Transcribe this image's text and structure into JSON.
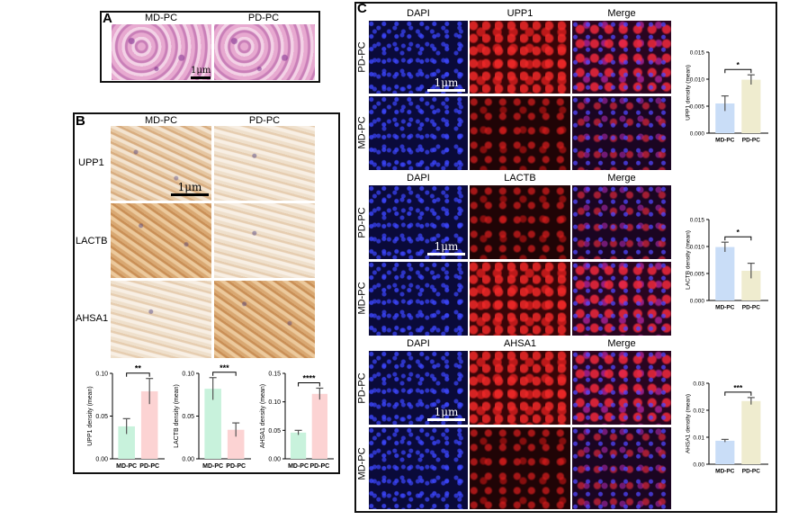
{
  "panels": {
    "A": {
      "letter": "A",
      "columns": [
        "MD-PC",
        "PD-PC"
      ],
      "scale_label": "1μm"
    },
    "B": {
      "letter": "B",
      "columns": [
        "MD-PC",
        "PD-PC"
      ],
      "rows": [
        "UPP1",
        "LACTB",
        "AHSA1"
      ],
      "scale_label": "1μm"
    },
    "C": {
      "letter": "C",
      "columns": [
        "DAPI",
        "UPP1",
        "Merge",
        "DAPI",
        "LACTB",
        "Merge",
        "DAPI",
        "AHSA1",
        "Merge"
      ],
      "row_labels": [
        "PD-PC",
        "MD-PC",
        "PD-PC",
        "MD-PC",
        "PD-PC",
        "MD-PC"
      ],
      "scale_label": "1μm"
    }
  },
  "chart_data": [
    {
      "type": "bar",
      "panel": "B",
      "categories": [
        "MD-PC",
        "PD-PC"
      ],
      "values": [
        0.038,
        0.079
      ],
      "errors": [
        0.009,
        0.015
      ],
      "ylabel": "UPP1 density (mean)",
      "ylim": [
        0,
        0.1
      ],
      "yticks": [
        "0.00",
        "0.05",
        "0.10"
      ],
      "significance": "**",
      "colors": [
        "#c8f2dc",
        "#fcd3d3"
      ]
    },
    {
      "type": "bar",
      "panel": "B",
      "categories": [
        "MD-PC",
        "PD-PC"
      ],
      "values": [
        0.082,
        0.034
      ],
      "errors": [
        0.013,
        0.008
      ],
      "ylabel": "LACTB density (mean)",
      "ylim": [
        0,
        0.1
      ],
      "yticks": [
        "0.00",
        "0.05",
        "0.10"
      ],
      "significance": "***",
      "colors": [
        "#c8f2dc",
        "#fcd3d3"
      ]
    },
    {
      "type": "bar",
      "panel": "B",
      "categories": [
        "MD-PC",
        "PD-PC"
      ],
      "values": [
        0.046,
        0.114
      ],
      "errors": [
        0.004,
        0.01
      ],
      "ylabel": "AHSA1 density (mean)",
      "ylim": [
        0,
        0.15
      ],
      "yticks": [
        "0.00",
        "0.05",
        "0.10",
        "0.15"
      ],
      "significance": "****",
      "colors": [
        "#c8f2dc",
        "#fcd3d3"
      ]
    },
    {
      "type": "bar",
      "panel": "C",
      "categories": [
        "MD-PC",
        "PD-PC"
      ],
      "values": [
        0.0055,
        0.0099
      ],
      "errors": [
        0.0014,
        0.0009
      ],
      "ylabel": "UPP1 density (mean)",
      "ylim": [
        0,
        0.015
      ],
      "yticks": [
        "0.000",
        "0.005",
        "0.010",
        "0.015"
      ],
      "significance": "*",
      "colors": [
        "#c9ddf7",
        "#efeccf"
      ]
    },
    {
      "type": "bar",
      "panel": "C",
      "categories": [
        "MD-PC",
        "PD-PC"
      ],
      "values": [
        0.0099,
        0.0055
      ],
      "errors": [
        0.0009,
        0.0014
      ],
      "ylabel": "LACTB density (mean)",
      "ylim": [
        0,
        0.015
      ],
      "yticks": [
        "0.000",
        "0.005",
        "0.010",
        "0.015"
      ],
      "significance": "*",
      "colors": [
        "#c9ddf7",
        "#efeccf"
      ]
    },
    {
      "type": "bar",
      "panel": "C",
      "categories": [
        "MD-PC",
        "PD-PC"
      ],
      "values": [
        0.0087,
        0.0234
      ],
      "errors": [
        0.0005,
        0.0013
      ],
      "ylabel": "AHSA1 density (mean)",
      "ylim": [
        0,
        0.03
      ],
      "yticks": [
        "0.00",
        "0.01",
        "0.02",
        "0.03"
      ],
      "significance": "***",
      "colors": [
        "#c9ddf7",
        "#efeccf"
      ]
    }
  ]
}
